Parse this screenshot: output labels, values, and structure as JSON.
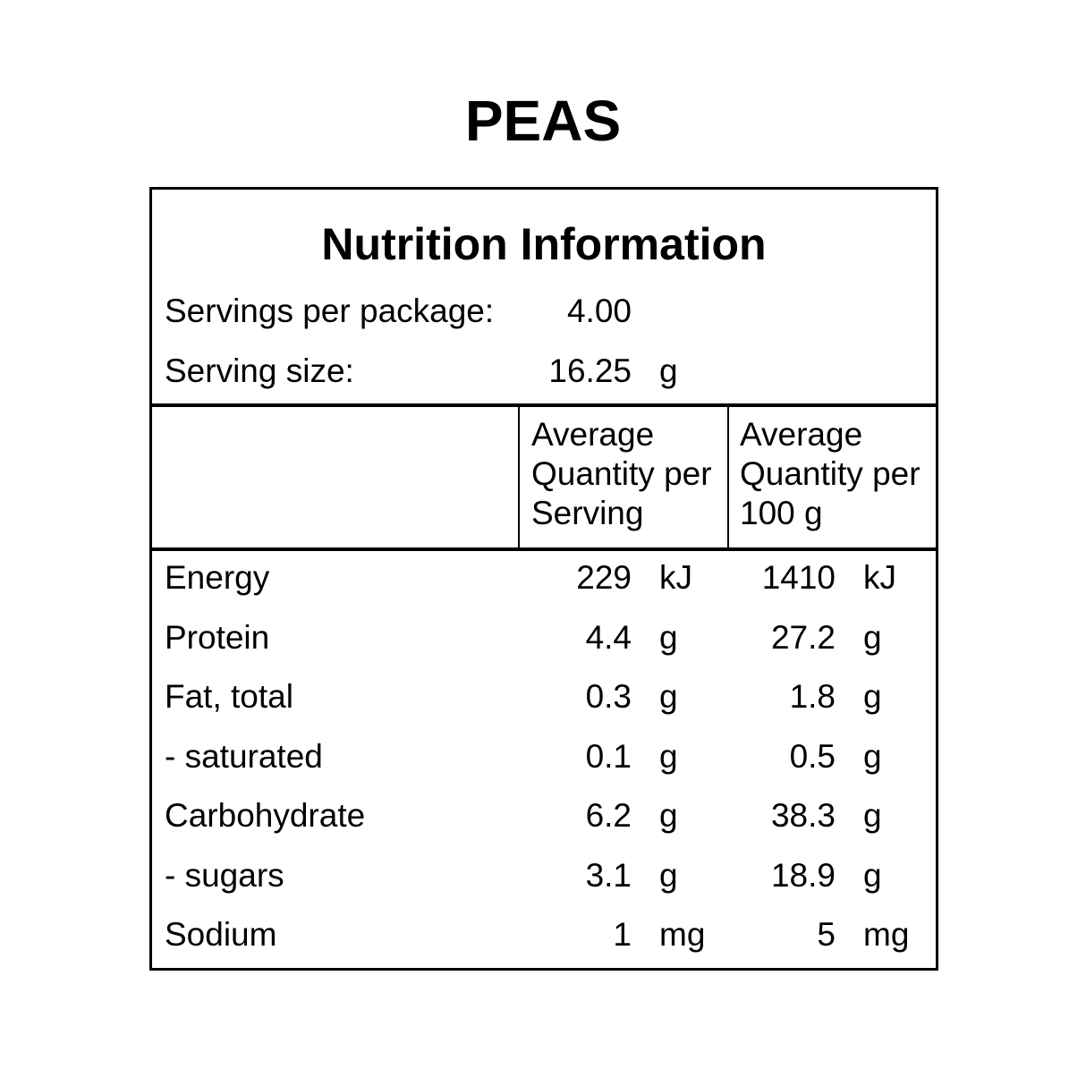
{
  "product_title": "PEAS",
  "panel": {
    "heading": "Nutrition Information",
    "servings_per_package": {
      "label": "Servings per package:",
      "value": "4.00"
    },
    "serving_size": {
      "label": "Serving size:",
      "value": "16.25",
      "unit": "g"
    },
    "columns": {
      "per_serving": [
        "Average",
        "Quantity per",
        "Serving"
      ],
      "per_100g": [
        "Average",
        "Quantity per",
        "100 g"
      ]
    },
    "rows": [
      {
        "name": "Energy",
        "serving": "229",
        "serving_unit": "kJ",
        "per100": "1410",
        "per100_unit": "kJ"
      },
      {
        "name": "Protein",
        "serving": "4.4",
        "serving_unit": "g",
        "per100": "27.2",
        "per100_unit": "g"
      },
      {
        "name": "Fat, total",
        "serving": "0.3",
        "serving_unit": "g",
        "per100": "1.8",
        "per100_unit": "g"
      },
      {
        "name": "- saturated",
        "serving": "0.1",
        "serving_unit": "g",
        "per100": "0.5",
        "per100_unit": "g"
      },
      {
        "name": "Carbohydrate",
        "serving": "6.2",
        "serving_unit": "g",
        "per100": "38.3",
        "per100_unit": "g"
      },
      {
        "name": "- sugars",
        "serving": "3.1",
        "serving_unit": "g",
        "per100": "18.9",
        "per100_unit": "g"
      },
      {
        "name": "Sodium",
        "serving": "1",
        "serving_unit": "mg",
        "per100": "5",
        "per100_unit": "mg"
      }
    ]
  }
}
